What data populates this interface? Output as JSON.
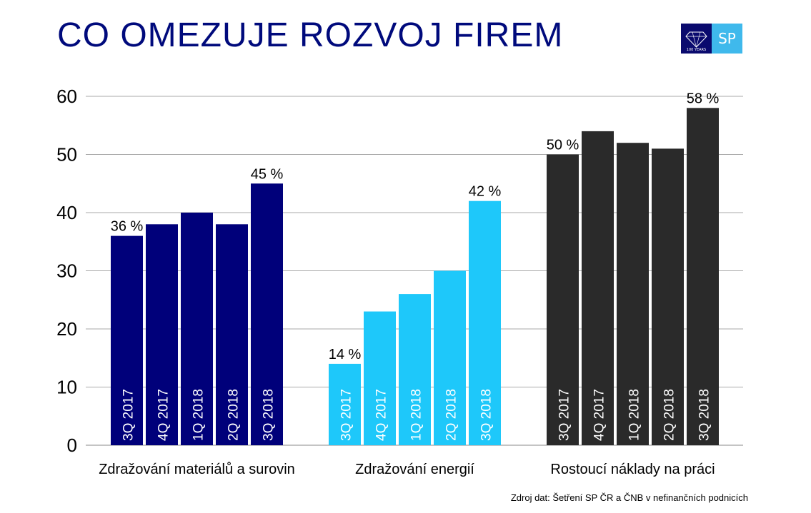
{
  "title": "CO OMEZUJE ROZVOJ FIREM",
  "logo": {
    "left_text": "100 YEARS",
    "right_text": "SP"
  },
  "source": "Zdroj dat: Šetření SP ČR a ČNB v nefinančních podnicích",
  "colors": {
    "title": "#000a7c",
    "materials": "#00007a",
    "energy": "#1ec8fa",
    "labor": "#2a2a2a",
    "grid": "#aaaaaa"
  },
  "chart_data": {
    "type": "bar",
    "title": "CO OMEZUJE ROZVOJ FIREM",
    "ylim": [
      0,
      60
    ],
    "yticks": [
      0,
      10,
      20,
      30,
      40,
      50,
      60
    ],
    "grid": true,
    "period_labels": [
      "3Q 2017",
      "4Q 2017",
      "1Q 2018",
      "2Q 2018",
      "3Q 2018"
    ],
    "groups": [
      {
        "name": "Zdražování materiálů a surovin",
        "color": "#00007a",
        "values": [
          36,
          38,
          40,
          38,
          45
        ],
        "data_labels": [
          "36 %",
          "",
          "",
          "",
          "45 %"
        ]
      },
      {
        "name": "Zdražování energií",
        "color": "#1ec8fa",
        "values": [
          14,
          23,
          26,
          30,
          42
        ],
        "data_labels": [
          "14 %",
          "",
          "",
          "",
          "42 %"
        ]
      },
      {
        "name": "Rostoucí náklady na práci",
        "color": "#2a2a2a",
        "values": [
          50,
          54,
          52,
          51,
          58
        ],
        "data_labels": [
          "50 %",
          "",
          "",
          "",
          "58 %"
        ]
      }
    ]
  }
}
